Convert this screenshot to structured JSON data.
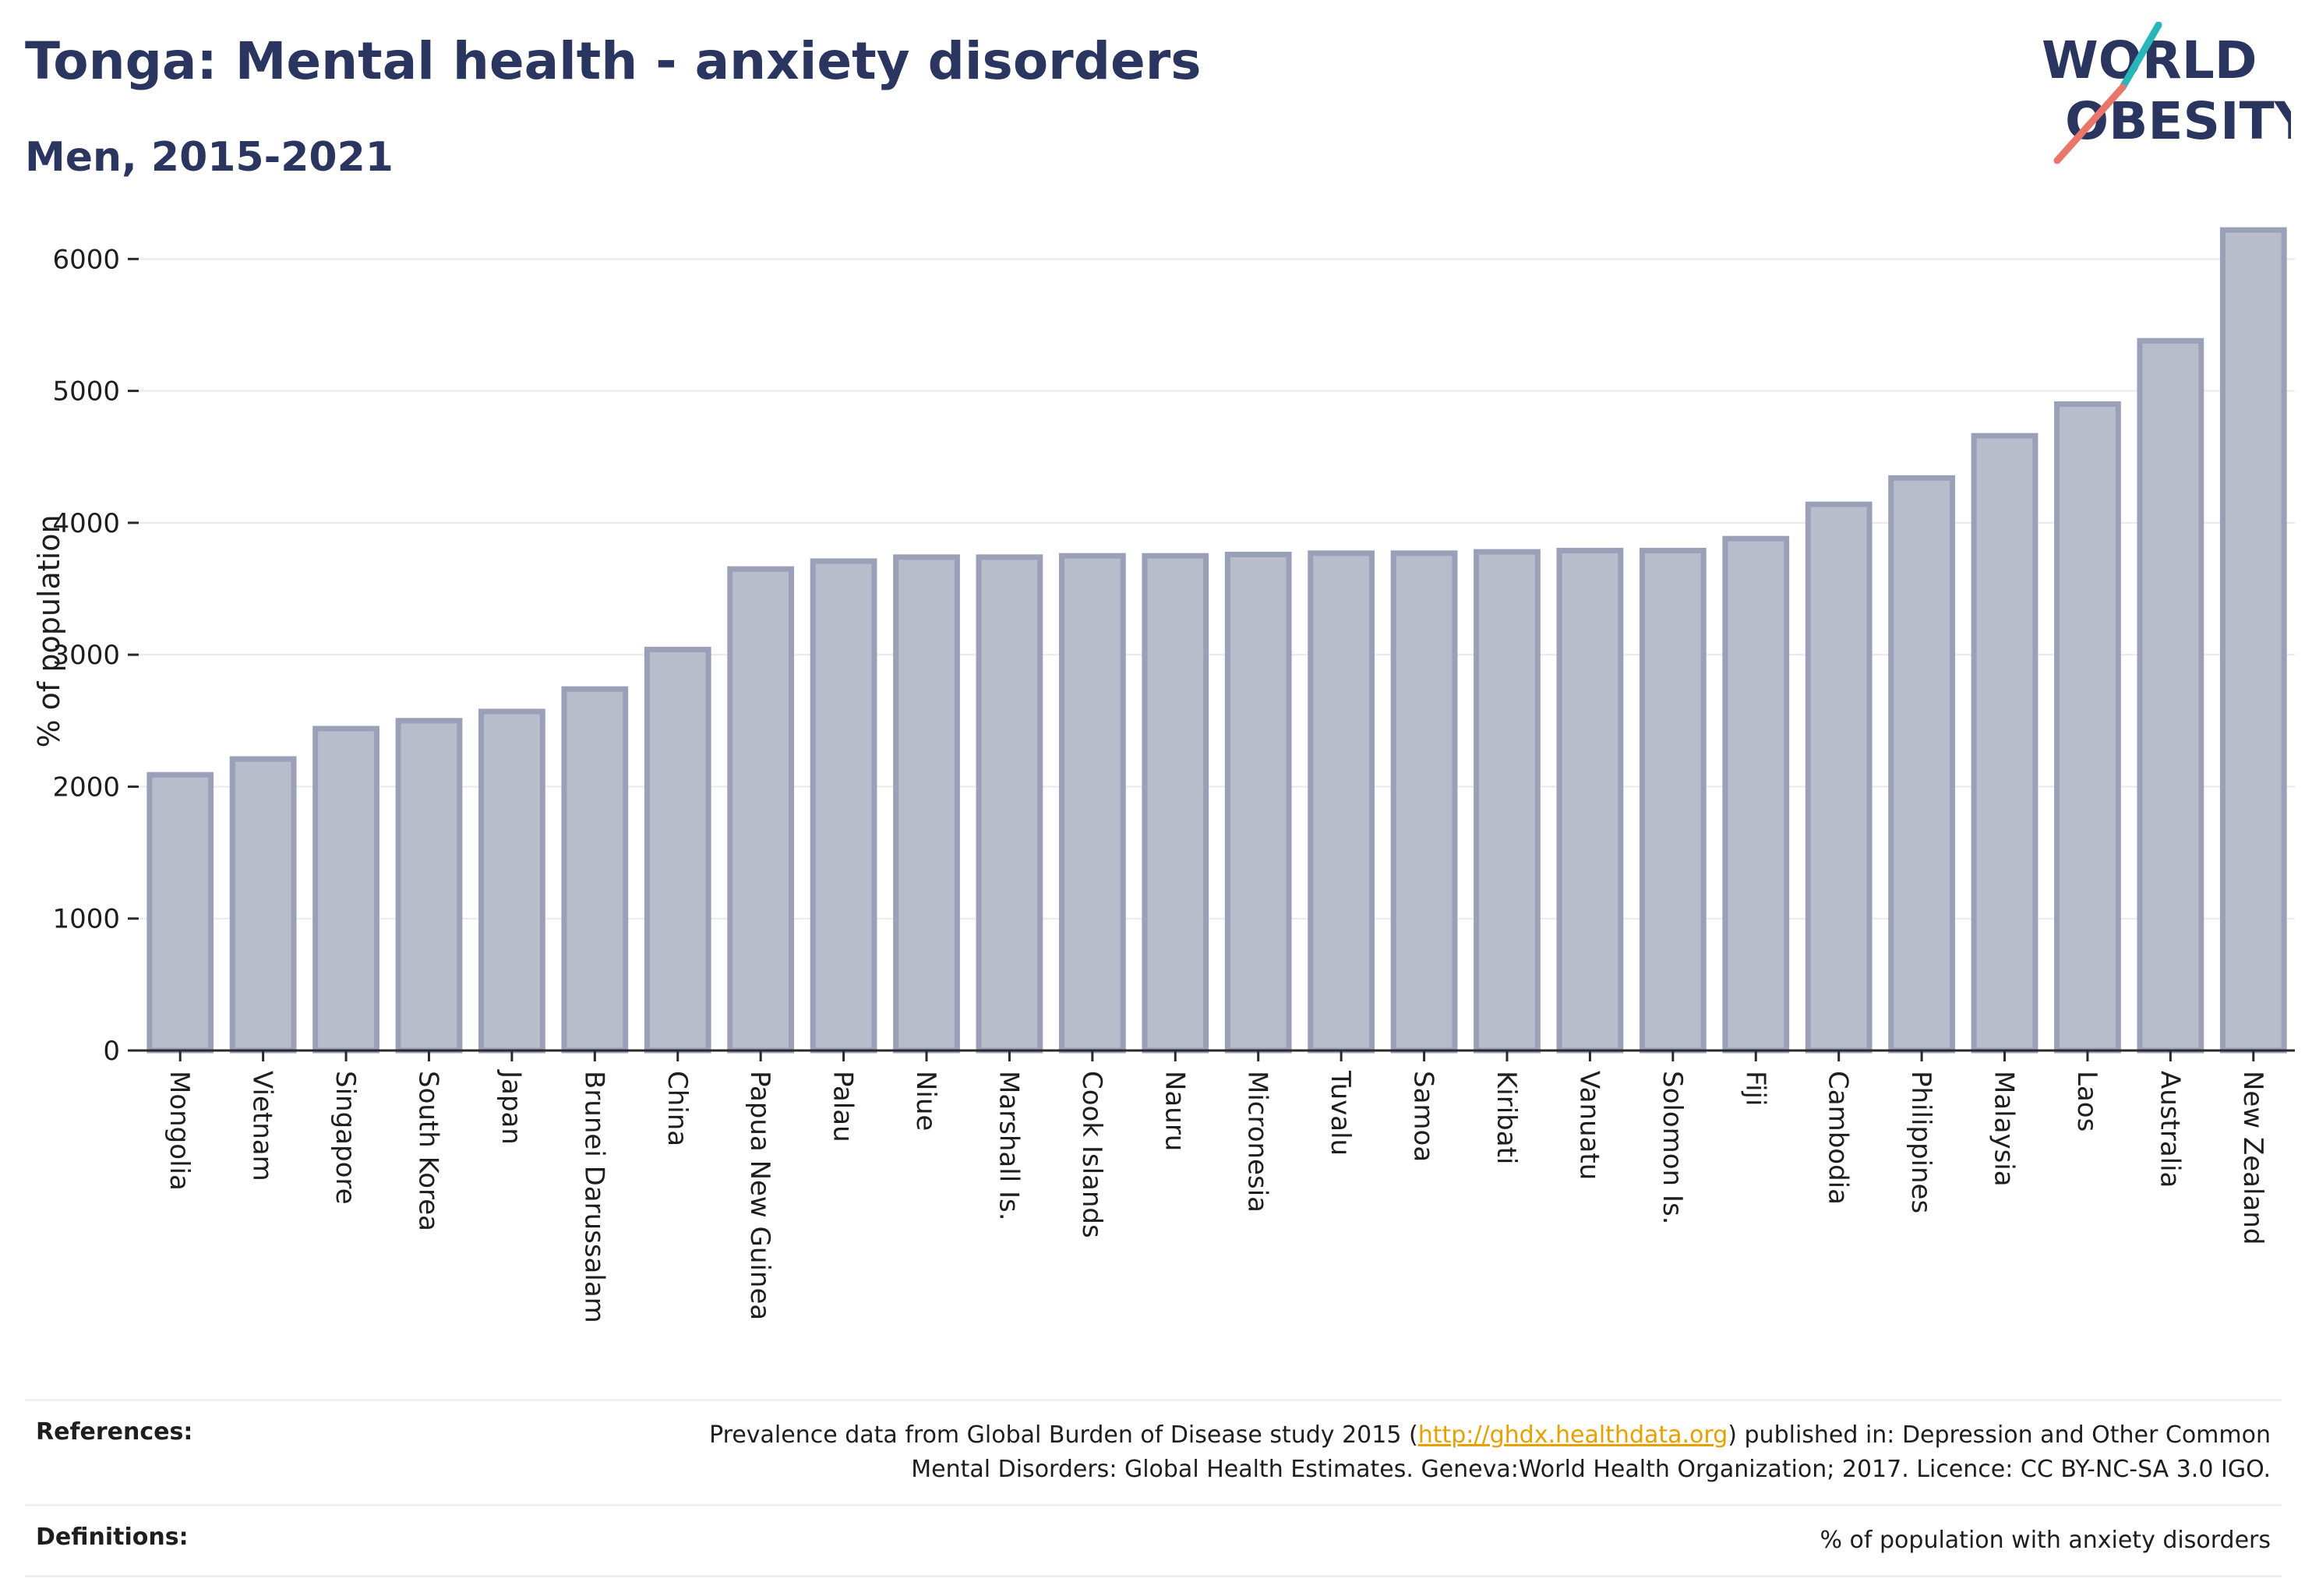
{
  "header": {
    "title": "Tonga: Mental health - anxiety disorders",
    "subtitle": "Men, 2015-2021"
  },
  "logo": {
    "line1": "WORLD",
    "line2": "OBESITY",
    "accent_teal": "#2ab6b8",
    "accent_coral": "#e8766a",
    "color": "#2a3560"
  },
  "chart_data": {
    "type": "bar",
    "ylabel": "% of population",
    "ylim": [
      0,
      6250
    ],
    "yticks": [
      0,
      1000,
      2000,
      3000,
      4000,
      5000,
      6000
    ],
    "grid": true,
    "bar_color": "#b9bccb",
    "categories": [
      "Mongolia",
      "Vietnam",
      "Singapore",
      "South Korea",
      "Japan",
      "Brunei Darussalam",
      "China",
      "Papua New Guinea",
      "Palau",
      "Niue",
      "Marshall Is.",
      "Cook Islands",
      "Nauru",
      "Micronesia",
      "Tuvalu",
      "Samoa",
      "Kiribati",
      "Vanuatu",
      "Solomon Is.",
      "Fiji",
      "Cambodia",
      "Philippines",
      "Malaysia",
      "Laos",
      "Australia",
      "New Zealand"
    ],
    "values": [
      2090,
      2210,
      2440,
      2500,
      2570,
      2740,
      3040,
      3650,
      3710,
      3740,
      3740,
      3750,
      3750,
      3760,
      3770,
      3770,
      3780,
      3790,
      3790,
      3880,
      4140,
      4340,
      4660,
      4900,
      5380,
      6220
    ]
  },
  "footer": {
    "references_label": "References:",
    "references_text_1": "Prevalence data from Global Burden of Disease study 2015 (",
    "references_link": "http://ghdx.healthdata.org",
    "references_text_2": ") published in: Depression and Other Common",
    "references_text_3": "Mental Disorders: Global Health Estimates. Geneva:World Health Organization; 2017. Licence: CC BY-NC-SA 3.0 IGO.",
    "definitions_label": "Definitions:",
    "definitions_text": "% of population with anxiety disorders"
  }
}
